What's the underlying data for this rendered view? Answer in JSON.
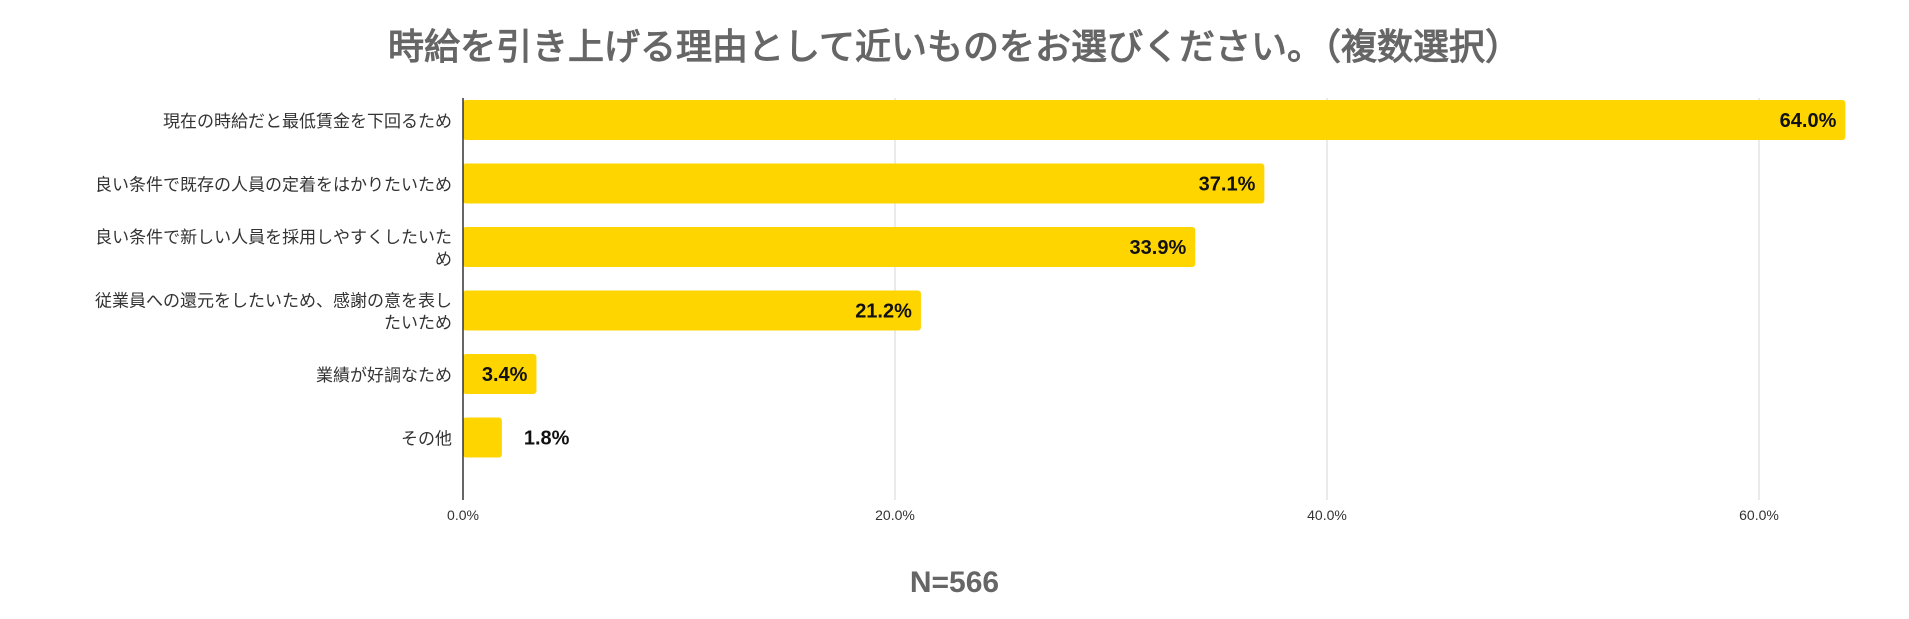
{
  "chart_data": {
    "type": "bar",
    "orientation": "horizontal",
    "title": "時給を引き上げる理由として近いものをお選びください。（複数選択）",
    "categories": [
      [
        "現在の時給だと最低賃金を下回るため"
      ],
      [
        "良い条件で既存の人員の定着をはかりたいため"
      ],
      [
        "良い条件で新しい人員を採用しやすくしたいた",
        "め"
      ],
      [
        "従業員への還元をしたいため、感謝の意を表し",
        "たいため"
      ],
      [
        "業績が好調なため"
      ],
      [
        "その他"
      ]
    ],
    "values": [
      64.0,
      37.1,
      33.9,
      21.2,
      3.4,
      1.8
    ],
    "value_labels": [
      "64.0%",
      "37.1%",
      "33.9%",
      "21.2%",
      "3.4%",
      "1.8%"
    ],
    "x_ticks": [
      0,
      20,
      40,
      60
    ],
    "x_tick_labels": [
      "0.0%",
      "20.0%",
      "40.0%",
      "60.0%"
    ],
    "xlim": [
      0,
      64.0
    ],
    "grid": true,
    "bar_color": "#FFD500",
    "grid_color": "#DDDDDD",
    "note": "N=566"
  }
}
